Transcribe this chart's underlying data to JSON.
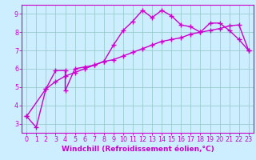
{
  "xlabel": "Windchill (Refroidissement éolien,°C)",
  "bg_color": "#cceeff",
  "grid_color": "#99cccc",
  "line_color": "#cc00cc",
  "x_data1": [
    0,
    1,
    2,
    3,
    4,
    4,
    5,
    6,
    7,
    8,
    9,
    10,
    11,
    12,
    13,
    14,
    15,
    16,
    17,
    18,
    19,
    20,
    21,
    22,
    23
  ],
  "y_data1": [
    3.4,
    2.8,
    4.9,
    5.9,
    5.9,
    4.8,
    6.0,
    6.1,
    6.2,
    6.4,
    7.3,
    8.1,
    8.6,
    9.2,
    8.8,
    9.2,
    8.9,
    8.4,
    8.3,
    8.0,
    8.5,
    8.5,
    8.1,
    7.6,
    7.0
  ],
  "x_data2": [
    0,
    2,
    3,
    4,
    5,
    6,
    7,
    8,
    9,
    10,
    11,
    12,
    13,
    14,
    15,
    16,
    17,
    18,
    19,
    20,
    21,
    22,
    23
  ],
  "y_data2": [
    3.4,
    4.9,
    5.3,
    5.6,
    5.8,
    6.0,
    6.2,
    6.4,
    6.5,
    6.7,
    6.9,
    7.1,
    7.3,
    7.5,
    7.6,
    7.7,
    7.9,
    8.0,
    8.1,
    8.2,
    8.35,
    8.4,
    7.0
  ],
  "xlim": [
    -0.5,
    23.5
  ],
  "ylim": [
    2.5,
    9.5
  ],
  "yticks": [
    3,
    4,
    5,
    6,
    7,
    8,
    9
  ],
  "xticks": [
    0,
    1,
    2,
    3,
    4,
    5,
    6,
    7,
    8,
    9,
    10,
    11,
    12,
    13,
    14,
    15,
    16,
    17,
    18,
    19,
    20,
    21,
    22,
    23
  ],
  "marker": "+",
  "markersize": 4,
  "linewidth": 1.0,
  "font_color": "#cc00cc",
  "axis_color": "#cc00cc",
  "tick_color": "#cc00cc",
  "xlabel_fontsize": 6.5,
  "tick_fontsize": 5.8
}
